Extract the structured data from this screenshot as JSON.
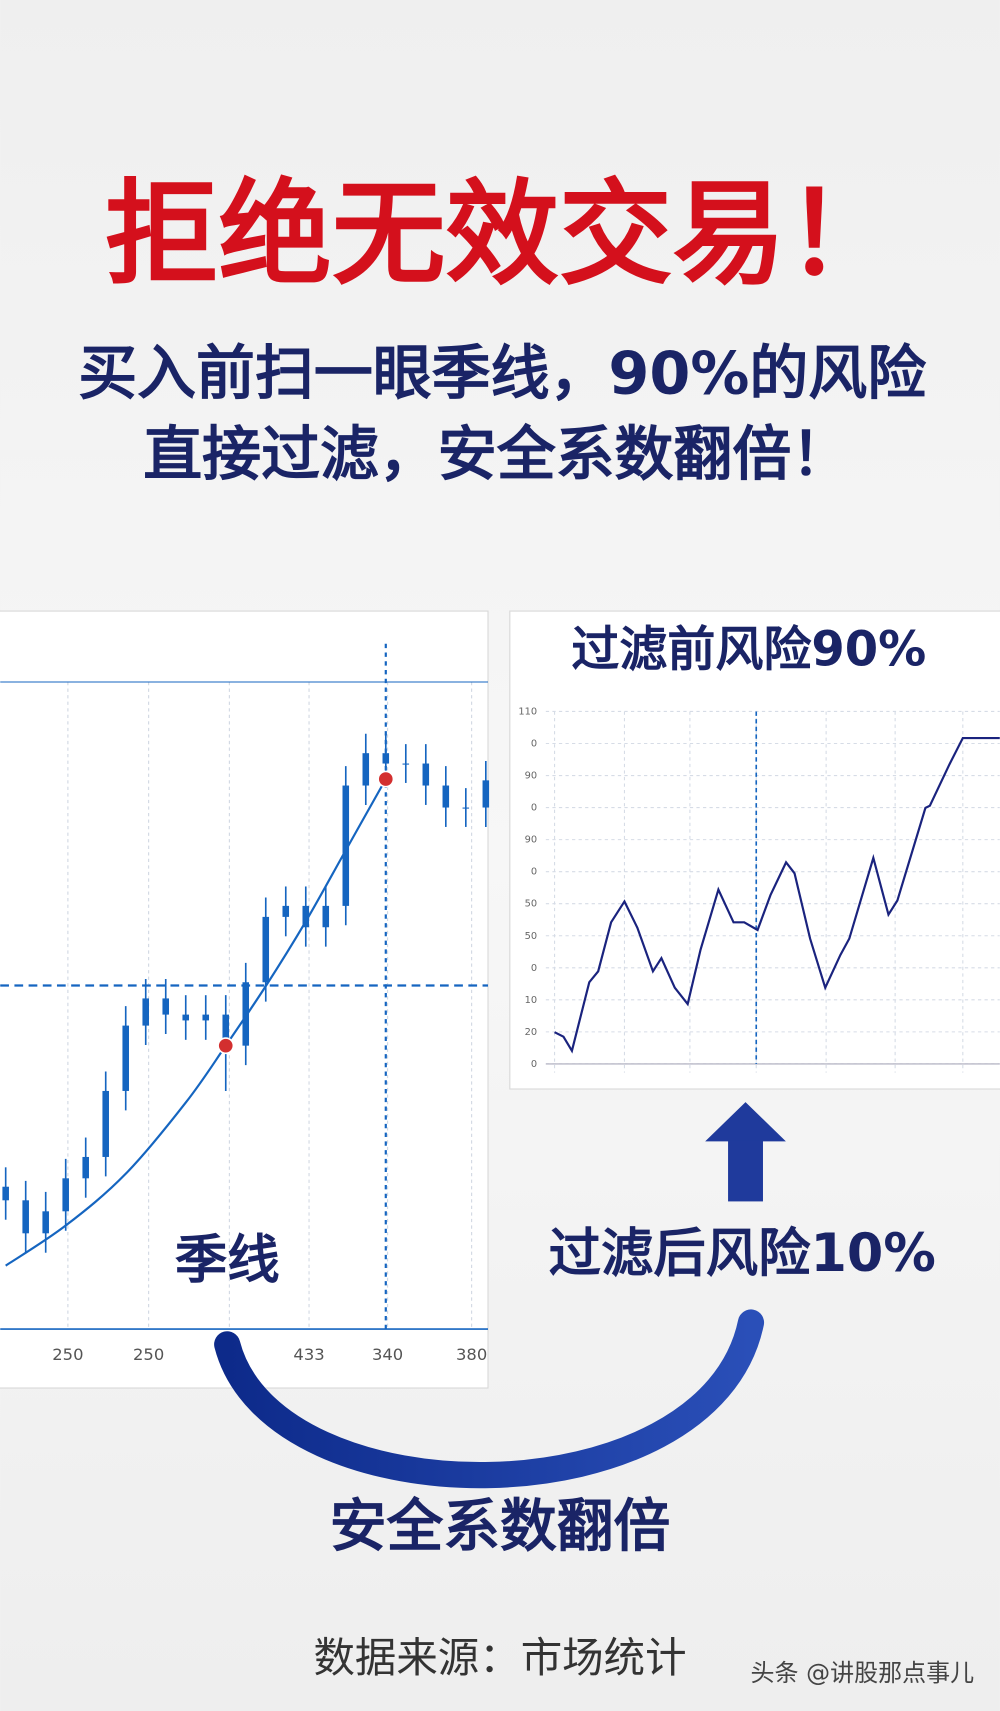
{
  "header": {
    "title": "拒绝无效交易！",
    "subtitle_lines": [
      "买入前扫一眼季线，90%的风险",
      "直接过滤，安全系数翻倍！"
    ]
  },
  "chart_data": [
    {
      "type": "candlestick",
      "line_label": "季线",
      "x_labels": [
        "250",
        "250",
        null,
        "433",
        "340",
        "380"
      ],
      "open": [
        22.0,
        19.9,
        14.8,
        18.2,
        23.3,
        26.6,
        36.8,
        46.9,
        51.1,
        48.6,
        47.7,
        48.6,
        43.8,
        53.6,
        63.7,
        65.4,
        62.1,
        65.4,
        84.0,
        89.0,
        87.4,
        87.4,
        84.0,
        80.6,
        80.6
      ],
      "close": [
        19.9,
        14.8,
        18.2,
        23.3,
        26.6,
        36.8,
        46.9,
        51.1,
        48.6,
        47.7,
        48.6,
        43.8,
        53.6,
        63.7,
        65.4,
        62.1,
        65.4,
        84.0,
        89.0,
        87.4,
        87.4,
        84.0,
        80.6,
        80.6,
        84.8
      ],
      "high": [
        25.0,
        22.9,
        21.2,
        26.3,
        29.6,
        39.8,
        49.9,
        54.1,
        54.1,
        51.6,
        51.6,
        51.6,
        56.6,
        66.7,
        68.4,
        68.4,
        68.4,
        87.0,
        92.0,
        92.0,
        90.4,
        90.4,
        87.0,
        83.6,
        87.8
      ],
      "low": [
        16.9,
        11.8,
        11.8,
        15.2,
        20.3,
        23.6,
        33.8,
        43.9,
        45.6,
        44.7,
        44.7,
        36.8,
        40.8,
        50.6,
        60.7,
        59.1,
        59.1,
        62.4,
        81.0,
        84.4,
        84.4,
        81.0,
        77.6,
        77.6,
        77.6
      ],
      "trend_line": {
        "x": [
          0,
          3,
          6,
          9,
          11,
          13,
          15,
          17,
          19
        ],
        "values": [
          9.8,
          16,
          24,
          35,
          43.8,
          53,
          63,
          74,
          85.0
        ]
      },
      "markers": {
        "x": [
          11,
          19
        ],
        "values": [
          43.8,
          85.0
        ]
      },
      "hline": 53.1,
      "vline": 19,
      "ylim": [
        0,
        100
      ],
      "color": "#1565c0",
      "marker_color": "#d32f2f"
    },
    {
      "type": "line",
      "title": "过滤前风险90%",
      "x": [
        0,
        2.0,
        3.9,
        7.8,
        9.8,
        12.7,
        15.7,
        18.6,
        22.1,
        24.0,
        27.0,
        29.9,
        32.8,
        36.8,
        40.2,
        42.6,
        45.6,
        48.5,
        52.0,
        53.9,
        57.4,
        60.8,
        64.2,
        66.2,
        71.6,
        75.0,
        77.0,
        83.3,
        84.3,
        88.7,
        91.7,
        100
      ],
      "values": [
        9.9,
        8.5,
        4.1,
        25.5,
        28.9,
        44.2,
        50.7,
        42.5,
        28.9,
        33.0,
        23.8,
        18.7,
        35.7,
        54.4,
        44.2,
        44.2,
        41.8,
        52.7,
        62.9,
        59.5,
        39.1,
        23.8,
        34.0,
        39.1,
        64.3,
        46.6,
        51.0,
        79.9,
        80.6,
        93.5,
        101.7,
        101.7
      ],
      "xlim": [
        0,
        100
      ],
      "ylim": [
        0,
        110
      ],
      "yticks": [
        0,
        {
          "value": 10,
          "label": "20"
        },
        {
          "value": 20,
          "label": "10"
        },
        {
          "value": 30,
          "label": "0"
        },
        {
          "value": 40,
          "label": "50"
        },
        {
          "value": 50,
          "label": "50"
        },
        {
          "value": 60,
          "label": "0"
        },
        {
          "value": 70,
          "label": "90"
        },
        {
          "value": 80,
          "label": "0"
        },
        {
          "value": 90,
          "label": "90"
        },
        {
          "value": 100,
          "label": "0"
        },
        110
      ],
      "xgrid": [
        0,
        15.7,
        30.4,
        45.3,
        61.0,
        76.5,
        91.7
      ],
      "vline": 45.3,
      "grid": true,
      "color": "#1a237e"
    }
  ],
  "labels": {
    "after": "过滤后风险10%",
    "double": "安全系数翻倍"
  },
  "footer": {
    "source": "数据来源：市场统计",
    "watermark": "头条 @讲股那点事儿"
  }
}
